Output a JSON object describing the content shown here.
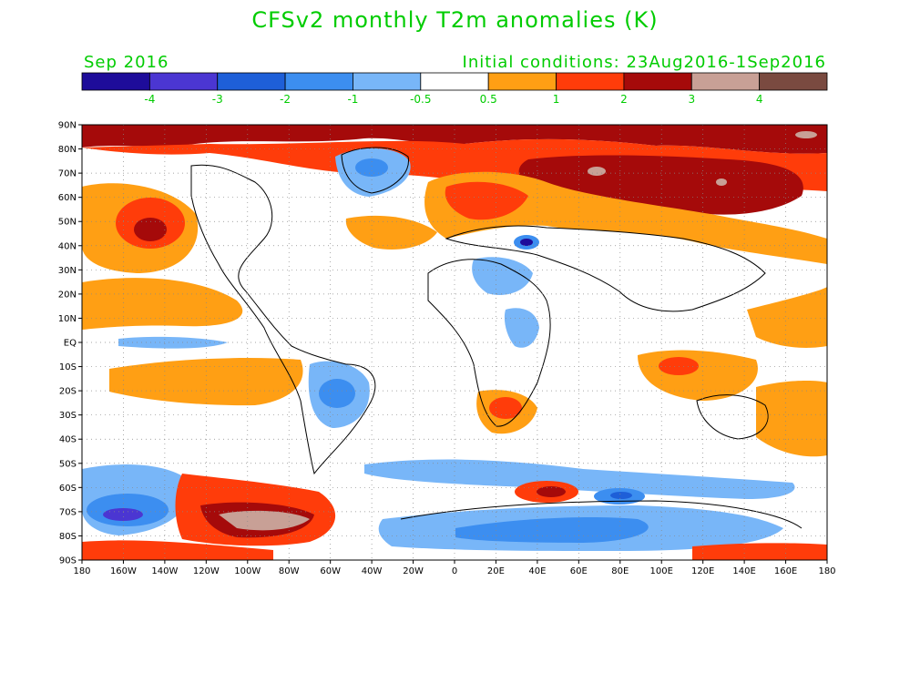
{
  "title": "CFSv2 monthly T2m anomalies (K)",
  "valid_month": "Sep 2016",
  "initial_conditions": "Initial conditions: 23Aug2016-1Sep2016",
  "colorbar": {
    "colors": [
      "#1e0c9a",
      "#4b36d2",
      "#1e5fd8",
      "#3c8ef0",
      "#78b6f8",
      "#ffffff",
      "#ff9f14",
      "#ff3c0a",
      "#a50a0a",
      "#c8a096",
      "#7a4a40"
    ],
    "labels": [
      "-4",
      "-3",
      "-2",
      "-1",
      "-0.5",
      "0.5",
      "1",
      "2",
      "3",
      "4"
    ]
  },
  "map": {
    "lat_labels": [
      "90N",
      "80N",
      "70N",
      "60N",
      "50N",
      "40N",
      "30N",
      "20N",
      "10N",
      "EQ",
      "10S",
      "20S",
      "30S",
      "40S",
      "50S",
      "60S",
      "70S",
      "80S",
      "90S"
    ],
    "lon_labels": [
      "180",
      "160W",
      "140W",
      "120W",
      "100W",
      "80W",
      "60W",
      "40W",
      "20W",
      "0",
      "20E",
      "40E",
      "60E",
      "80E",
      "100E",
      "120E",
      "140E",
      "160E",
      "180"
    ]
  }
}
